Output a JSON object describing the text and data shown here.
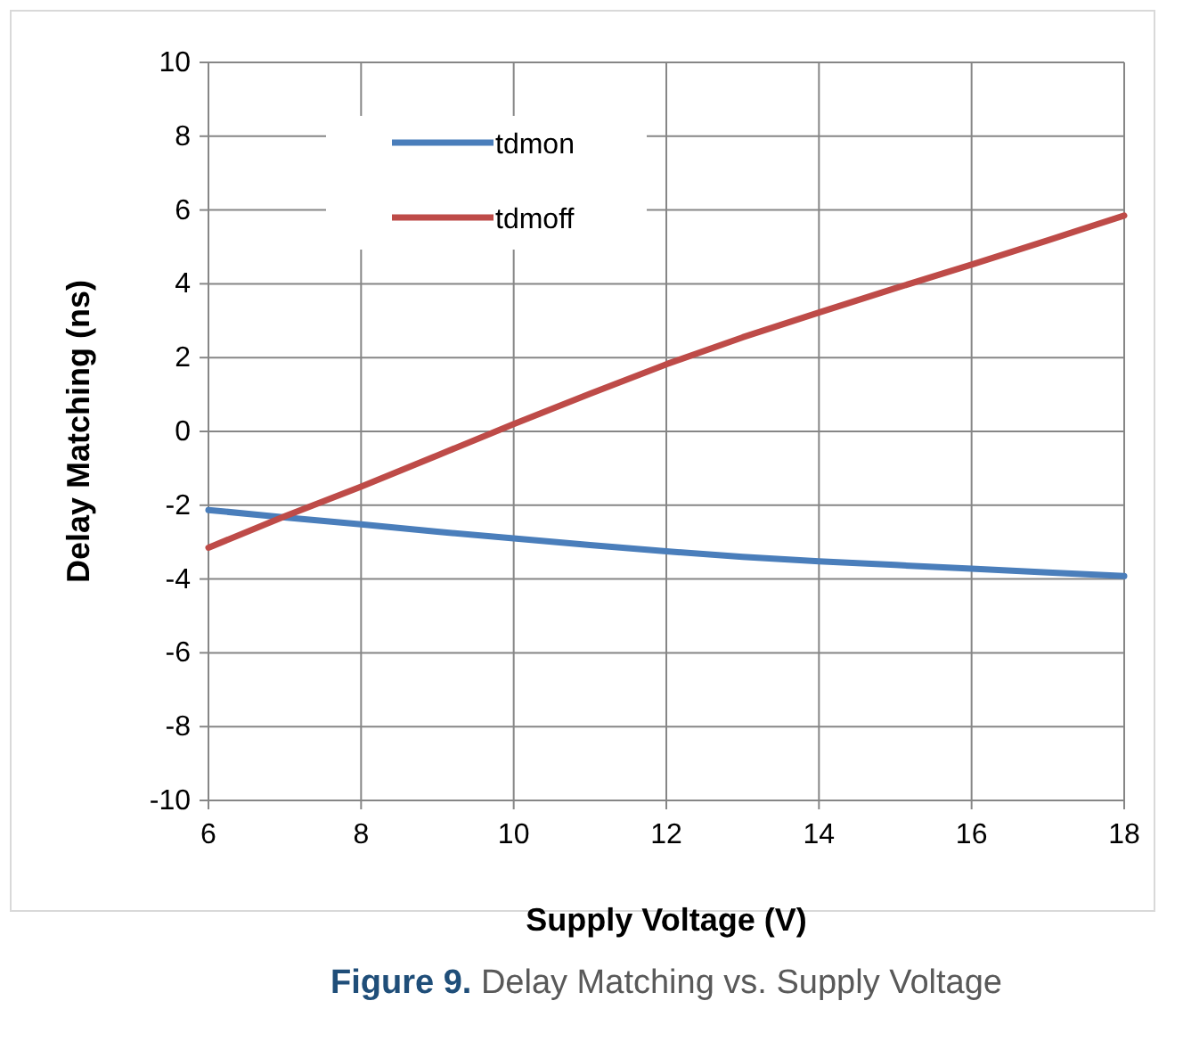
{
  "chart_data": {
    "type": "line",
    "xlabel": "Supply Voltage (V)",
    "ylabel": "Delay Matching (ns)",
    "x": [
      6,
      7,
      8,
      9,
      10,
      11,
      12,
      13,
      14,
      15,
      16,
      17,
      18
    ],
    "series": [
      {
        "name": "tdmon",
        "color": "#4a7ebb",
        "values": [
          -2.13,
          -2.33,
          -2.52,
          -2.72,
          -2.9,
          -3.08,
          -3.25,
          -3.4,
          -3.52,
          -3.62,
          -3.72,
          -3.82,
          -3.92
        ]
      },
      {
        "name": "tdmoff",
        "color": "#be4b48",
        "values": [
          -3.15,
          -2.3,
          -1.5,
          -0.65,
          0.2,
          1.02,
          1.82,
          2.55,
          3.22,
          3.88,
          4.52,
          5.18,
          5.85
        ]
      }
    ],
    "xlim": [
      6,
      18
    ],
    "xticks": [
      6,
      8,
      10,
      12,
      14,
      16,
      18
    ],
    "ylim": [
      -10,
      10
    ],
    "yticks": [
      -10,
      -8,
      -6,
      -4,
      -2,
      0,
      2,
      4,
      6,
      8,
      10
    ],
    "grid": true,
    "legend": "top left",
    "marker": "none",
    "line_style": "solid",
    "annotations": [
      "Figure 9. Delay Matching vs. Supply Voltage"
    ]
  }
}
